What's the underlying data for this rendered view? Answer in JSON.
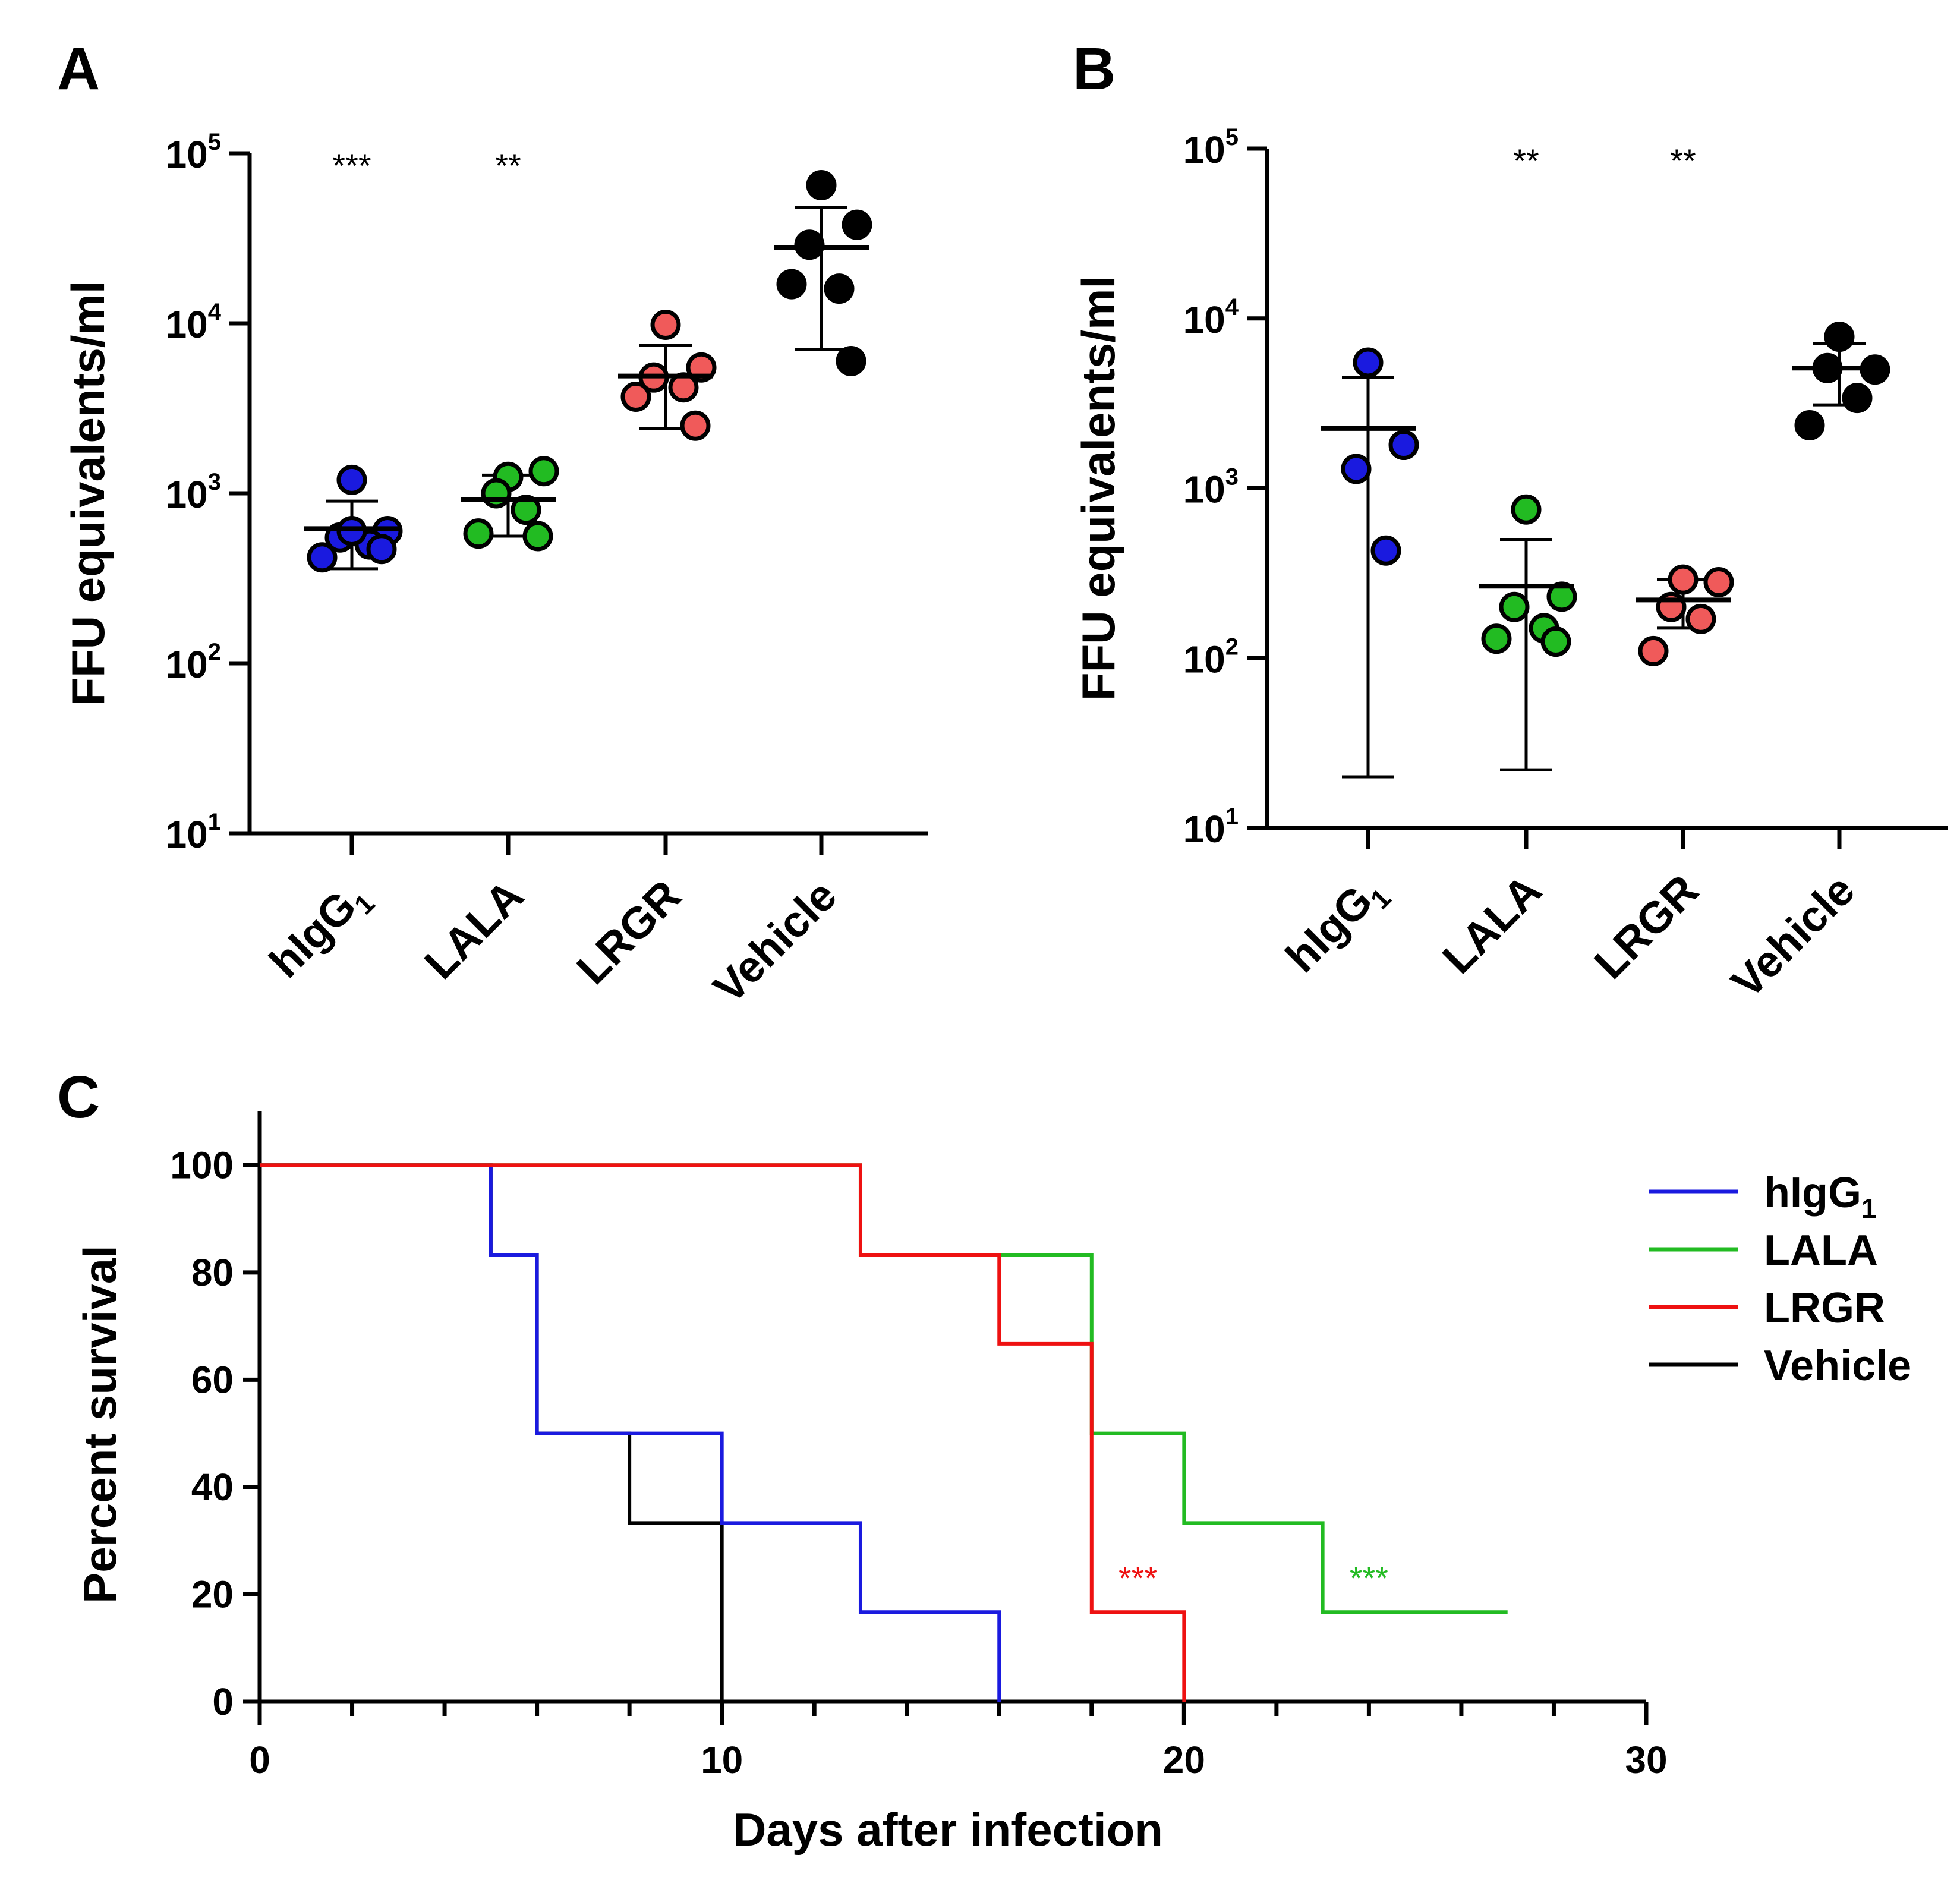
{
  "chart_data": [
    {
      "type": "scatter",
      "panel": "A",
      "ylabel": "FFU equivalents/ml",
      "yscale": "log",
      "ylim": [
        10,
        100000
      ],
      "yticks": [
        {
          "base": "10",
          "exp": "1"
        },
        {
          "base": "10",
          "exp": "2"
        },
        {
          "base": "10",
          "exp": "3"
        },
        {
          "base": "10",
          "exp": "4"
        },
        {
          "base": "10",
          "exp": "5"
        }
      ],
      "categories": [
        {
          "label": "hIgG",
          "sub": "1"
        },
        {
          "label": "LALA",
          "sub": ""
        },
        {
          "label": "LRGR",
          "sub": ""
        },
        {
          "label": "Vehicle",
          "sub": ""
        }
      ],
      "significance": [
        "***",
        "**",
        "",
        ""
      ],
      "series": [
        {
          "name": "hIgG1",
          "color": "#1a1adf",
          "points": [
            1200,
            600,
            550,
            500,
            420,
            470,
            600
          ],
          "mean": 620,
          "sd": [
            360,
            900
          ]
        },
        {
          "name": "LALA",
          "color": "#22bb22",
          "points": [
            1250,
            1350,
            1000,
            800,
            580,
            560
          ],
          "mean": 920,
          "sd": [
            560,
            1280
          ]
        },
        {
          "name": "LRGR",
          "color": "#f05a5a",
          "points": [
            9800,
            5500,
            4800,
            4200,
            3700,
            2500
          ],
          "mean": 4900,
          "sd": [
            2400,
            7400
          ]
        },
        {
          "name": "Vehicle",
          "color": "#000000",
          "points": [
            65000,
            38000,
            29000,
            16000,
            17000,
            6000
          ],
          "mean": 28000,
          "sd": [
            7000,
            48000
          ]
        }
      ]
    },
    {
      "type": "scatter",
      "panel": "B",
      "ylabel": "FFU equivalents/ml",
      "yscale": "log",
      "ylim": [
        10,
        100000
      ],
      "yticks": [
        {
          "base": "10",
          "exp": "1"
        },
        {
          "base": "10",
          "exp": "2"
        },
        {
          "base": "10",
          "exp": "3"
        },
        {
          "base": "10",
          "exp": "4"
        },
        {
          "base": "10",
          "exp": "5"
        }
      ],
      "categories": [
        {
          "label": "hIgG",
          "sub": "1"
        },
        {
          "label": "LALA",
          "sub": ""
        },
        {
          "label": "LRGR",
          "sub": ""
        },
        {
          "label": "Vehicle",
          "sub": ""
        }
      ],
      "significance": [
        "",
        "**",
        "**",
        ""
      ],
      "series": [
        {
          "name": "hIgG1",
          "color": "#1a1adf",
          "points": [
            5500,
            1800,
            1300,
            430
          ],
          "mean": 2250,
          "sd": [
            20,
            4500
          ]
        },
        {
          "name": "LALA",
          "color": "#22bb22",
          "points": [
            750,
            230,
            200,
            150,
            130,
            125
          ],
          "mean": 265,
          "sd": [
            22,
            500
          ]
        },
        {
          "name": "LRGR",
          "color": "#f05a5a",
          "points": [
            290,
            280,
            200,
            170,
            110
          ],
          "mean": 220,
          "sd": [
            150,
            290
          ]
        },
        {
          "name": "Vehicle",
          "color": "#000000",
          "points": [
            7800,
            5000,
            5100,
            3400,
            2350
          ],
          "mean": 5100,
          "sd": [
            3100,
            7100
          ]
        }
      ]
    },
    {
      "type": "line",
      "panel": "C",
      "subtype": "survival-step",
      "xlabel": "Days after infection",
      "ylabel": "Percent survival",
      "xlim": [
        0,
        30
      ],
      "ylim": [
        0,
        110
      ],
      "xticks": [
        0,
        10,
        20,
        30
      ],
      "yticks": [
        0,
        20,
        40,
        60,
        80,
        100
      ],
      "series": [
        {
          "name": "hIgG",
          "sub": "1",
          "color": "#1a1adf",
          "steps": [
            [
              0,
              100
            ],
            [
              5,
              83.3
            ],
            [
              6,
              50
            ],
            [
              10,
              33.3
            ],
            [
              13,
              16.7
            ],
            [
              16,
              0
            ]
          ],
          "end": 16
        },
        {
          "name": "LALA",
          "sub": "",
          "color": "#22bb22",
          "steps": [
            [
              0,
              100
            ],
            [
              13,
              83.3
            ],
            [
              18,
              50
            ],
            [
              20,
              33.3
            ],
            [
              23,
              16.7
            ]
          ],
          "end": 27
        },
        {
          "name": "LRGR",
          "sub": "",
          "color": "#ee1111",
          "steps": [
            [
              0,
              100
            ],
            [
              13,
              83.3
            ],
            [
              16,
              66.7
            ],
            [
              18,
              16.7
            ],
            [
              20,
              0
            ]
          ],
          "end": 20
        },
        {
          "name": "Vehicle",
          "sub": "",
          "color": "#000000",
          "steps": [
            [
              0,
              100
            ],
            [
              5,
              83.3
            ],
            [
              6,
              50
            ],
            [
              8,
              33.3
            ],
            [
              10,
              0
            ]
          ],
          "end": 10
        }
      ],
      "annotations": [
        {
          "text": "***",
          "x": 19,
          "y": 26,
          "color": "#ee1111"
        },
        {
          "text": "***",
          "x": 24,
          "y": 26,
          "color": "#22bb22"
        }
      ]
    }
  ]
}
